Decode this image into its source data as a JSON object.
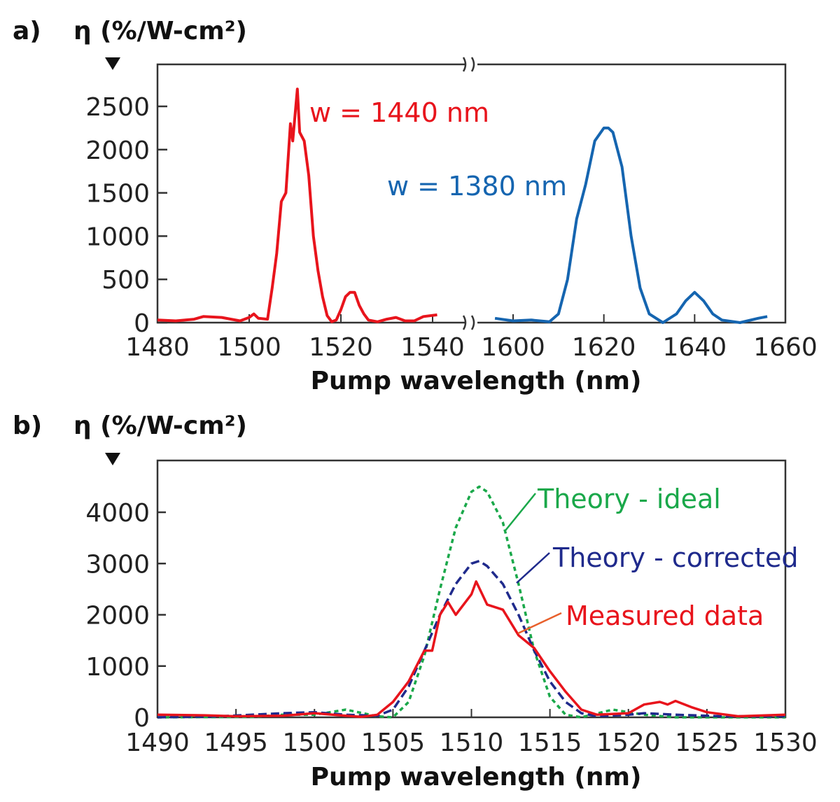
{
  "chart_data": [
    {
      "type": "line",
      "panel_label": "a)",
      "ylabel": "η (%/W-cm²)",
      "xlabel": "Pump wavelength (nm)",
      "x_axis_broken": true,
      "x_segments": [
        [
          1480,
          1540
        ],
        [
          1600,
          1660
        ]
      ],
      "xticks": [
        1480,
        1500,
        1520,
        1540,
        1600,
        1620,
        1640,
        1660
      ],
      "yticks": [
        0,
        500,
        1000,
        1500,
        2000,
        2500
      ],
      "ylim": [
        0,
        3000
      ],
      "grid": false,
      "series": [
        {
          "name": "w = 1440 nm",
          "color": "#e8141c",
          "x": [
            1480,
            1484,
            1488,
            1490,
            1494,
            1498,
            1500,
            1501,
            1502,
            1504,
            1505,
            1506,
            1507,
            1508,
            1509,
            1509.5,
            1510,
            1510.5,
            1511,
            1512,
            1513,
            1514,
            1515,
            1516,
            1517,
            1518,
            1519,
            1520,
            1521,
            1522,
            1523,
            1524,
            1525,
            1526,
            1528,
            1530,
            1532,
            1534,
            1536,
            1538,
            1541
          ],
          "y": [
            30,
            20,
            40,
            70,
            60,
            20,
            60,
            100,
            50,
            40,
            400,
            800,
            1400,
            1500,
            2300,
            2100,
            2400,
            2700,
            2200,
            2100,
            1700,
            1000,
            600,
            300,
            80,
            10,
            30,
            150,
            300,
            350,
            350,
            200,
            100,
            30,
            10,
            40,
            60,
            20,
            20,
            70,
            90
          ]
        },
        {
          "name": "w = 1380 nm",
          "color": "#1565b0",
          "x": [
            1596,
            1600,
            1604,
            1608,
            1610,
            1612,
            1614,
            1616,
            1618,
            1620,
            1621,
            1622,
            1624,
            1626,
            1628,
            1630,
            1633,
            1636,
            1638,
            1640,
            1642,
            1644,
            1646,
            1650,
            1654,
            1656
          ],
          "y": [
            50,
            20,
            30,
            10,
            100,
            500,
            1200,
            1600,
            2100,
            2250,
            2250,
            2200,
            1800,
            1000,
            400,
            100,
            0,
            100,
            250,
            350,
            250,
            100,
            30,
            0,
            50,
            70
          ]
        }
      ]
    },
    {
      "type": "line",
      "panel_label": "b)",
      "ylabel": "η (%/W-cm²)",
      "xlabel": "Pump wavelength (nm)",
      "xticks": [
        1490,
        1495,
        1500,
        1505,
        1510,
        1515,
        1520,
        1525,
        1530
      ],
      "yticks": [
        0,
        1000,
        2000,
        3000,
        4000
      ],
      "xlim": [
        1490,
        1530
      ],
      "ylim": [
        0,
        4900
      ],
      "grid": false,
      "series": [
        {
          "name": "Theory - ideal",
          "color": "#1aa84a",
          "dash": "dotted",
          "x": [
            1490,
            1496,
            1498,
            1500,
            1502,
            1504,
            1505,
            1506,
            1507,
            1508,
            1509,
            1510,
            1510.5,
            1511,
            1512,
            1513,
            1514,
            1515,
            1516,
            1517,
            1519,
            1521,
            1523,
            1525,
            1530
          ],
          "y": [
            0,
            10,
            50,
            50,
            150,
            20,
            0,
            300,
            1200,
            2500,
            3700,
            4400,
            4500,
            4400,
            3800,
            2600,
            1300,
            400,
            50,
            0,
            150,
            50,
            0,
            0,
            0
          ]
        },
        {
          "name": "Theory - corrected",
          "color": "#1f2a8c",
          "dash": "dashed",
          "x": [
            1490,
            1494,
            1498,
            1500,
            1502,
            1504,
            1505,
            1506,
            1507,
            1508,
            1509,
            1510,
            1510.5,
            1511,
            1512,
            1513,
            1514,
            1515,
            1516,
            1517,
            1518,
            1520,
            1521,
            1523,
            1526,
            1530
          ],
          "y": [
            0,
            20,
            80,
            100,
            50,
            30,
            150,
            600,
            1300,
            2000,
            2600,
            3000,
            3050,
            2950,
            2600,
            2000,
            1300,
            700,
            300,
            80,
            20,
            50,
            80,
            50,
            20,
            20
          ]
        },
        {
          "name": "Measured data",
          "color": "#e8141c",
          "dash": "solid",
          "x": [
            1490,
            1493,
            1495,
            1498,
            1500,
            1502,
            1503,
            1504,
            1505,
            1506,
            1507,
            1507.5,
            1508,
            1508.5,
            1509,
            1510,
            1510.3,
            1511,
            1512,
            1513,
            1514,
            1515,
            1516,
            1517,
            1518,
            1520,
            1521,
            1522,
            1522.5,
            1523,
            1524,
            1525,
            1527,
            1530
          ],
          "y": [
            50,
            40,
            20,
            30,
            80,
            30,
            10,
            50,
            300,
            700,
            1300,
            1300,
            2000,
            2250,
            2000,
            2400,
            2650,
            2200,
            2100,
            1600,
            1350,
            900,
            500,
            150,
            50,
            80,
            250,
            300,
            250,
            320,
            200,
            100,
            20,
            50
          ]
        }
      ]
    }
  ]
}
